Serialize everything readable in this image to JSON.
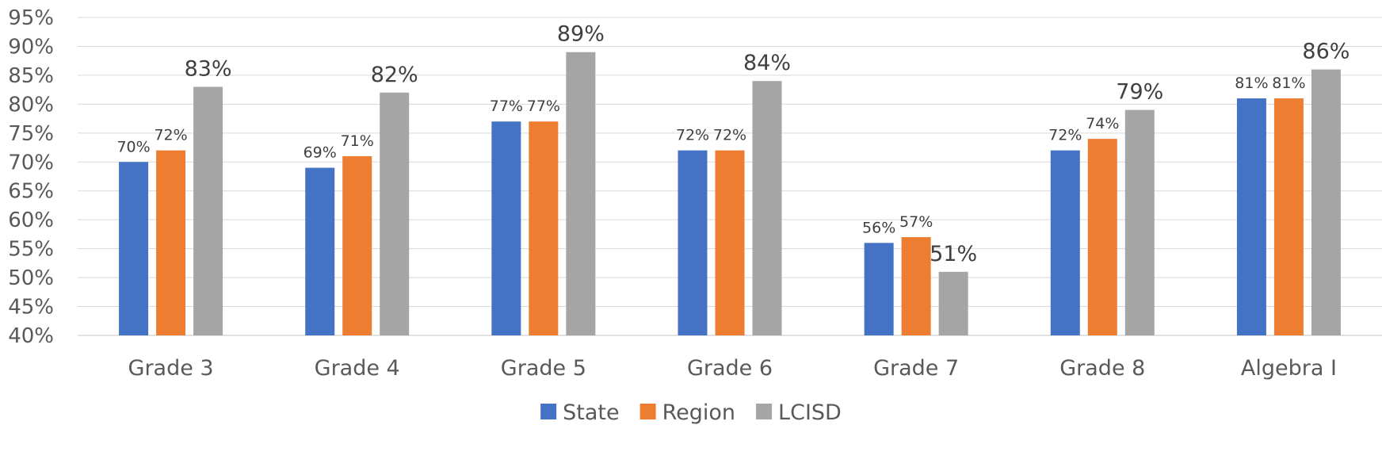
{
  "chart_data": {
    "type": "bar",
    "categories": [
      "Grade 3",
      "Grade 4",
      "Grade 5",
      "Grade 6",
      "Grade 7",
      "Grade 8",
      "Algebra I"
    ],
    "series": [
      {
        "name": "State",
        "color": "#4472c4",
        "values": [
          70,
          69,
          77,
          72,
          56,
          72,
          81
        ]
      },
      {
        "name": "Region",
        "color": "#ed7d31",
        "values": [
          72,
          71,
          77,
          72,
          57,
          74,
          81
        ]
      },
      {
        "name": "LCISD",
        "color": "#a5a5a5",
        "values": [
          83,
          82,
          89,
          84,
          51,
          79,
          86
        ]
      }
    ],
    "value_suffix": "%",
    "ylim": [
      40,
      95
    ],
    "y_ticks": [
      40,
      45,
      50,
      55,
      60,
      65,
      70,
      75,
      80,
      85,
      90,
      95
    ],
    "grid": true,
    "legend": "bottom",
    "title": "",
    "xlabel": "",
    "ylabel": ""
  }
}
